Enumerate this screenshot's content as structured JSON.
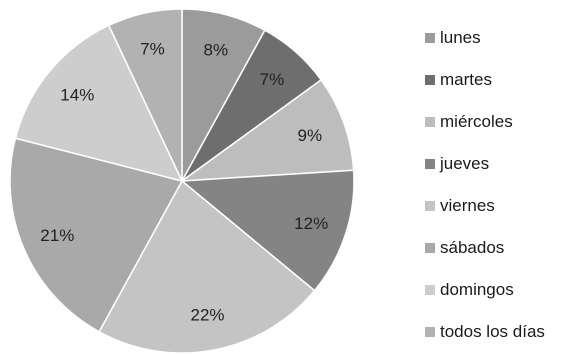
{
  "chart_data": {
    "type": "pie",
    "categories": [
      "lunes",
      "martes",
      "miércoles",
      "jueves",
      "viernes",
      "sábados",
      "domingos",
      "todos los días"
    ],
    "values": [
      8,
      7,
      9,
      12,
      22,
      21,
      14,
      7
    ],
    "labels": [
      "8%",
      "7%",
      "9%",
      "12%",
      "22%",
      "21%",
      "14%",
      "7%"
    ],
    "colors": [
      "#9b9b9b",
      "#6e6e6e",
      "#bdbdbd",
      "#848484",
      "#c4c4c4",
      "#a9a9a9",
      "#cdcdcd",
      "#b2b2b2"
    ],
    "start_angle_deg": 0,
    "direction": "clockwise",
    "legend_position": "right"
  }
}
